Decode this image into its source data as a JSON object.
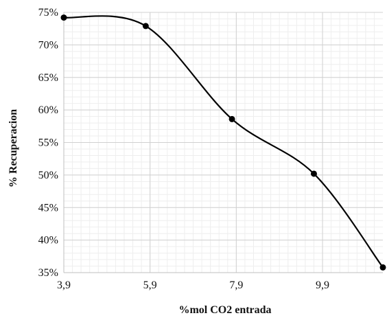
{
  "chart_data": {
    "type": "line",
    "title": "",
    "xlabel": "%mol CO2 entrada",
    "ylabel": "% Recuperacion",
    "xlim": [
      3.9,
      11.3
    ],
    "ylim": [
      35,
      75
    ],
    "x_ticks": [
      3.9,
      5.9,
      7.9,
      9.9
    ],
    "x_tick_labels": [
      "3,9",
      "5,9",
      "7,9",
      "9,9"
    ],
    "y_ticks": [
      35,
      40,
      45,
      50,
      55,
      60,
      65,
      70,
      75
    ],
    "y_tick_labels": [
      "35%",
      "40%",
      "45%",
      "50%",
      "55%",
      "60%",
      "65%",
      "70%",
      "75%"
    ],
    "x_minor_step": 0.2,
    "y_minor_step": 1,
    "grid": true,
    "smooth": true,
    "series": [
      {
        "name": "",
        "x": [
          3.9,
          5.8,
          7.8,
          9.7,
          11.3
        ],
        "values": [
          74.2,
          72.9,
          58.6,
          50.2,
          35.8
        ],
        "color": "#000000",
        "marker": "circle"
      }
    ]
  }
}
